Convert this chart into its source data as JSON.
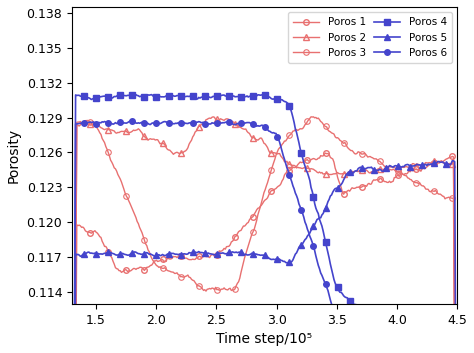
{
  "title": "",
  "xlabel": "Time step/10⁵",
  "ylabel": "Porosity",
  "xlim": [
    1.3,
    4.5
  ],
  "ylim": [
    0.113,
    0.1385
  ],
  "xticks": [
    1.5,
    2.0,
    2.5,
    3.0,
    3.5,
    4.0,
    4.5
  ],
  "yticks": [
    0.114,
    0.117,
    0.12,
    0.123,
    0.126,
    0.129,
    0.132,
    0.135,
    0.138
  ],
  "pink_color": "#e87070",
  "blue_color": "#4444cc",
  "legend_labels": [
    "Poros 1",
    "Poros 2",
    "Poros 3",
    "Poros 4",
    "Poros 5",
    "Poros 6"
  ]
}
